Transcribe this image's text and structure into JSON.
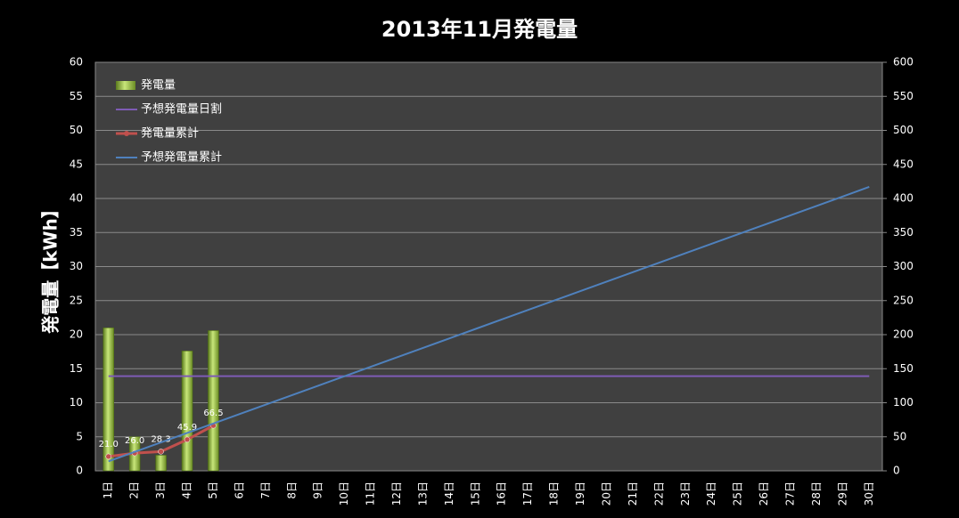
{
  "chart_data": {
    "type": "combo",
    "title": "2013年11月発電量",
    "y_label": "発電量【kWh】",
    "categories": [
      "1日",
      "2日",
      "3日",
      "4日",
      "5日",
      "6日",
      "7日",
      "8日",
      "9日",
      "10日",
      "11日",
      "12日",
      "13日",
      "14日",
      "15日",
      "16日",
      "17日",
      "18日",
      "19日",
      "20日",
      "21日",
      "22日",
      "23日",
      "24日",
      "25日",
      "26日",
      "27日",
      "28日",
      "29日",
      "30日"
    ],
    "ylim": [
      0,
      60
    ],
    "yticks": [
      0,
      5,
      10,
      15,
      20,
      25,
      30,
      35,
      40,
      45,
      50,
      55,
      60
    ],
    "y2lim": [
      0,
      600
    ],
    "y2ticks": [
      0,
      50,
      100,
      150,
      200,
      250,
      300,
      350,
      400,
      450,
      500,
      550,
      600
    ],
    "grid": true,
    "legend": "top-left",
    "series": [
      {
        "name": "発電量",
        "type": "bar",
        "color": "#8fb33a",
        "values": [
          21.0,
          5.0,
          2.3,
          17.6,
          20.6,
          null,
          null,
          null,
          null,
          null,
          null,
          null,
          null,
          null,
          null,
          null,
          null,
          null,
          null,
          null,
          null,
          null,
          null,
          null,
          null,
          null,
          null,
          null,
          null,
          null
        ]
      },
      {
        "name": "予想発電量日割",
        "type": "line",
        "color": "#7e5bb5",
        "values": [
          13.9,
          13.9,
          13.9,
          13.9,
          13.9,
          13.9,
          13.9,
          13.9,
          13.9,
          13.9,
          13.9,
          13.9,
          13.9,
          13.9,
          13.9,
          13.9,
          13.9,
          13.9,
          13.9,
          13.9,
          13.9,
          13.9,
          13.9,
          13.9,
          13.9,
          13.9,
          13.9,
          13.9,
          13.9,
          13.9
        ]
      },
      {
        "name": "発電量累計",
        "type": "line",
        "axis": "y2",
        "color": "#c0504d",
        "markers": true,
        "values": [
          21.0,
          26.0,
          28.3,
          45.9,
          66.5,
          null,
          null,
          null,
          null,
          null,
          null,
          null,
          null,
          null,
          null,
          null,
          null,
          null,
          null,
          null,
          null,
          null,
          null,
          null,
          null,
          null,
          null,
          null,
          null,
          null
        ],
        "value_labels": [
          "21.0",
          "26.0",
          "28.3",
          "45.9",
          "66.5",
          null,
          null,
          null,
          null,
          null,
          null,
          null,
          null,
          null,
          null,
          null,
          null,
          null,
          null,
          null,
          null,
          null,
          null,
          null,
          null,
          null,
          null,
          null,
          null,
          null
        ]
      },
      {
        "name": "予想発電量累計",
        "type": "line",
        "axis": "y2",
        "color": "#4f81bd",
        "values": [
          13.9,
          27.8,
          41.7,
          55.6,
          69.5,
          83.4,
          97.3,
          111.2,
          125.1,
          139,
          152.9,
          166.8,
          180.7,
          194.6,
          208.5,
          222.4,
          236.3,
          250.2,
          264.1,
          278,
          291.9,
          305.8,
          319.7,
          333.6,
          347.5,
          361.4,
          375.3,
          389.2,
          403.1,
          417
        ]
      }
    ]
  }
}
